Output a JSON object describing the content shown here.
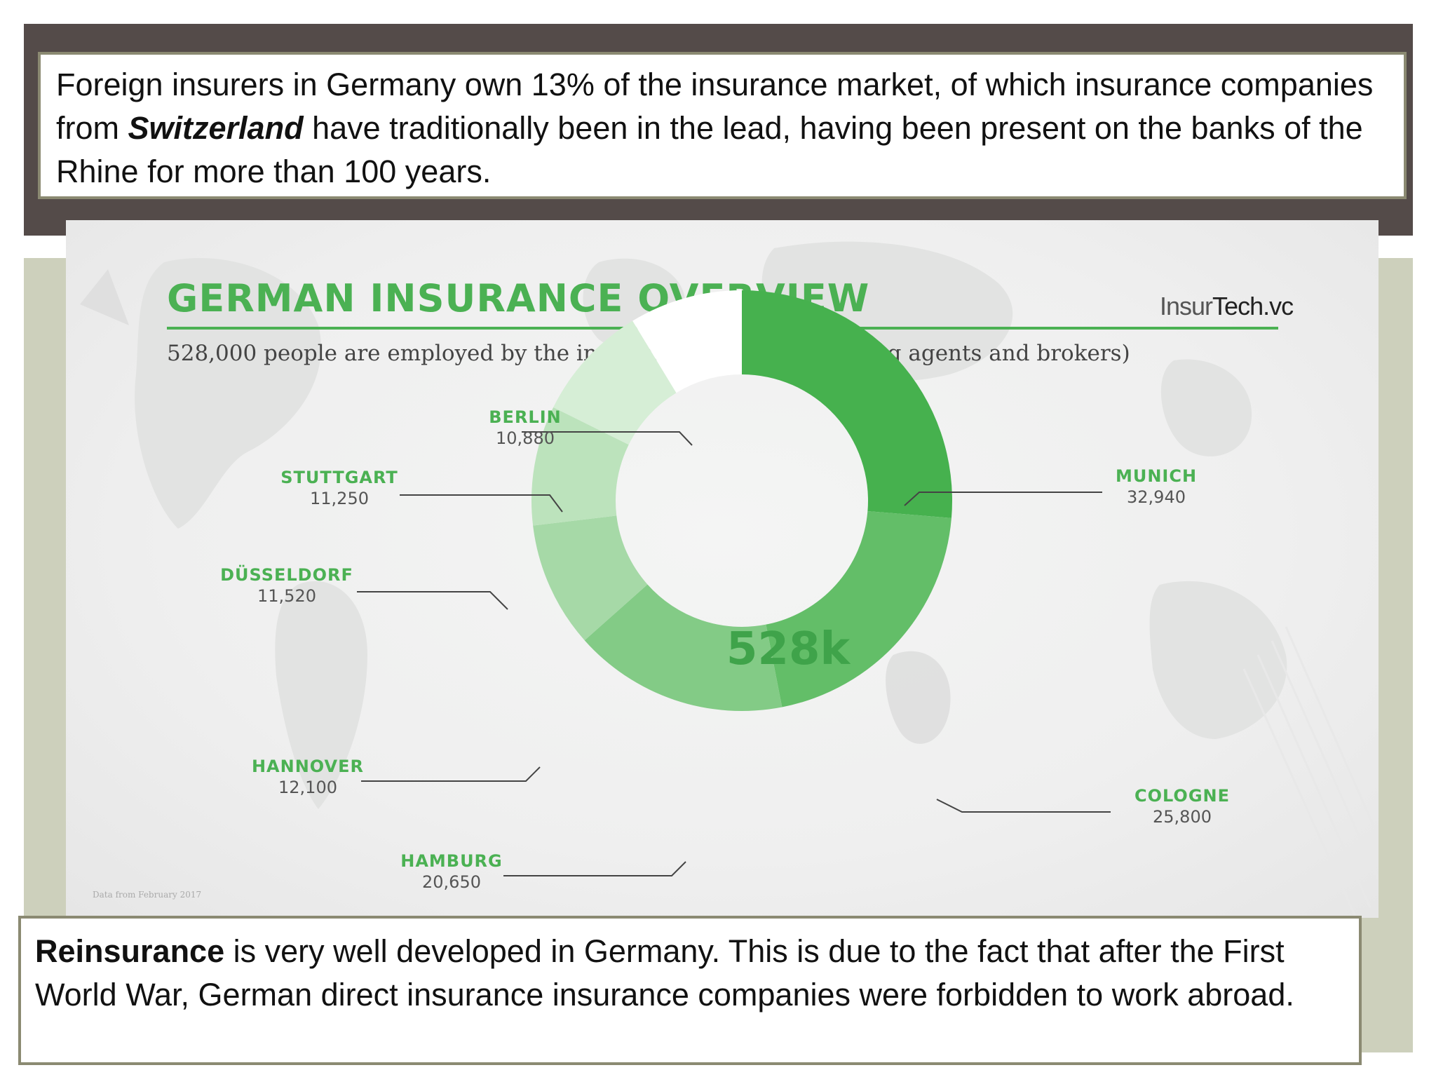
{
  "top_text": {
    "before": "Foreign insurers in Germany own 13% of the insurance market, of which insurance companies from ",
    "emphasis": "Switzerland",
    "after": " have traditionally been in the lead, having been present on the banks of the Rhine for more than 100 years."
  },
  "bottom_text": {
    "bold": "Reinsurance",
    "rest": " is very well developed in Germany. This is due to the fact that after the First World War, German direct insurance insurance companies were forbidden to work abroad."
  },
  "brand": {
    "part1": "Insur",
    "part2": "Tech.vc"
  },
  "footnote": "Data from February 2017",
  "chart_data": {
    "type": "donut",
    "title": "GERMAN INSURANCE OVERVIEW",
    "subtitle": "528,000 people are employed by the insurance industry (including agents and brokers)",
    "center_label": "528k",
    "categories": [
      "MUNICH",
      "COLOGNE",
      "HAMBURG",
      "HANNOVER",
      "DÜSSELDORF",
      "STUTTGART",
      "BERLIN"
    ],
    "values": [
      32940,
      25800,
      20650,
      12100,
      11520,
      11250,
      10880
    ],
    "value_labels": [
      "32,940",
      "25,800",
      "20,650",
      "12,100",
      "11,520",
      "11,250",
      "10,880"
    ],
    "colors": [
      "#46b14e",
      "#63be68",
      "#83cb86",
      "#a6d9a7",
      "#bce3bc",
      "#d6eed6",
      "#ffffff"
    ]
  }
}
